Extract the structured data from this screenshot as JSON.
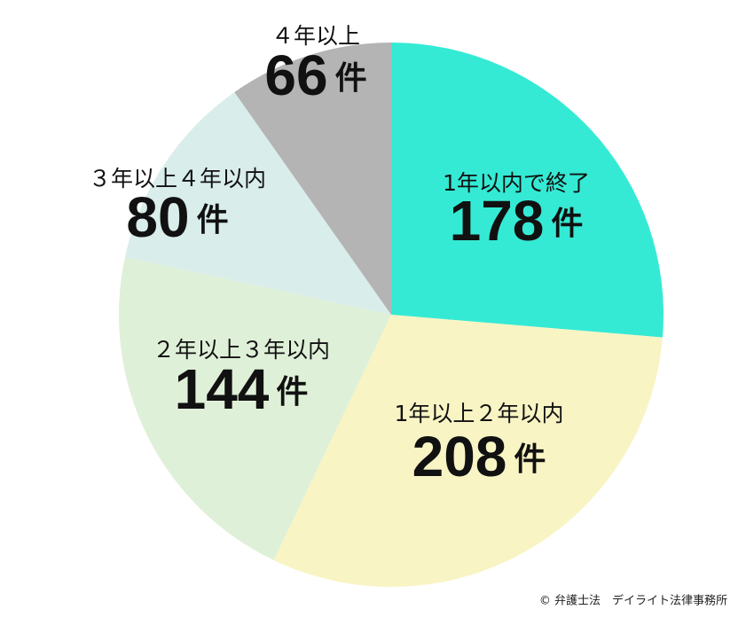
{
  "chart_data": {
    "type": "pie",
    "categories": [
      "1年以内で終了",
      "1年以上２年以内",
      "２年以上３年以内",
      "３年以上４年以内",
      "４年以上"
    ],
    "values": [
      178,
      208,
      144,
      80,
      66
    ],
    "unit": "件",
    "colors": [
      "#35ead4",
      "#f9f4c4",
      "#dff0d8",
      "#d9edeb",
      "#b4b4b4"
    ],
    "credit": "© 弁護士法　デイライト法律事務所"
  }
}
